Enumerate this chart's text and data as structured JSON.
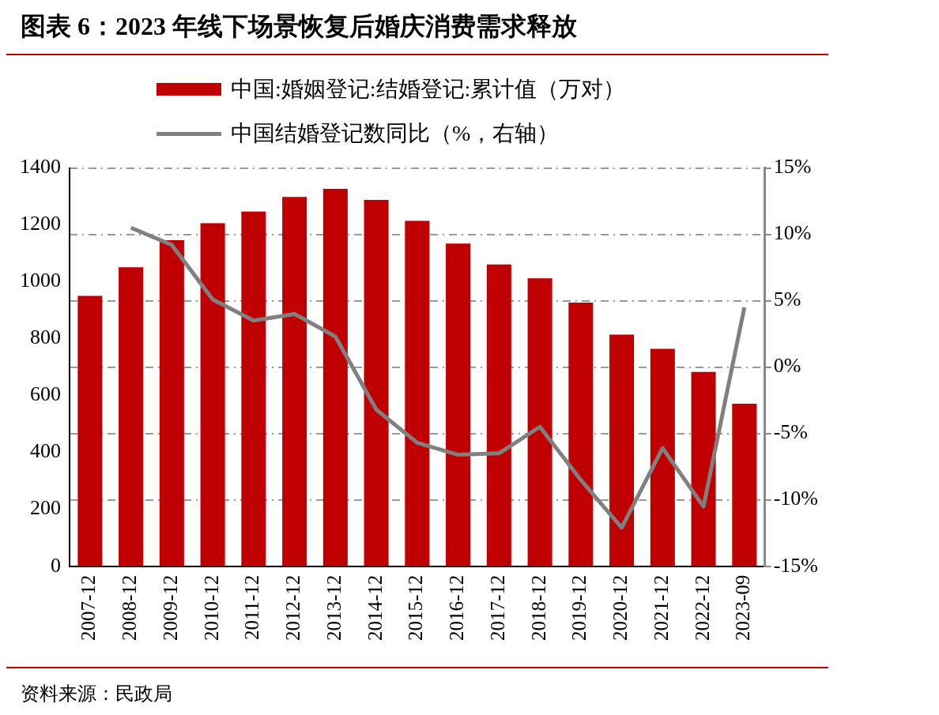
{
  "chart_data": {
    "type": "bar",
    "title": "图表 6：2023 年线下场景恢复后婚庆消费需求释放",
    "categories": [
      "2007-12",
      "2008-12",
      "2009-12",
      "2010-12",
      "2011-12",
      "2012-12",
      "2013-12",
      "2014-12",
      "2015-12",
      "2016-12",
      "2017-12",
      "2018-12",
      "2019-12",
      "2020-12",
      "2021-12",
      "2022-12",
      "2023-09"
    ],
    "series": [
      {
        "name": "中国:婚姻登记:结婚登记:累计值（万对）",
        "color": "#c00000",
        "values": [
          950,
          1051,
          1146,
          1206,
          1247,
          1298,
          1327,
          1288,
          1214,
          1134,
          1061,
          1012,
          927,
          814,
          764,
          683,
          571
        ]
      },
      {
        "name": "中国结婚登记数同比（%，右轴）",
        "type": "line",
        "axis": "y2",
        "color": "#808080",
        "values": [
          null,
          10.5,
          9.2,
          5.1,
          3.5,
          4.0,
          2.3,
          -3.2,
          -5.7,
          -6.6,
          -6.5,
          -4.5,
          -8.5,
          -12.1,
          -6.1,
          -10.5,
          4.5
        ]
      }
    ],
    "ylim": [
      0,
      1400
    ],
    "yticks": [
      0,
      200,
      400,
      600,
      800,
      1000,
      1200,
      1400
    ],
    "y2lim": [
      -15,
      15
    ],
    "y2ticks": [
      {
        "value": -15,
        "label": "-15%"
      },
      {
        "value": -10,
        "label": "-10%"
      },
      {
        "value": -5,
        "label": "-5%"
      },
      {
        "value": 0,
        "label": "0%"
      },
      {
        "value": 5,
        "label": "5%"
      },
      {
        "value": 10,
        "label": "10%"
      },
      {
        "value": 15,
        "label": "15%"
      }
    ],
    "grid": "y",
    "legend": "top",
    "marker": "none",
    "annotations": [
      "资料来源：民政局"
    ]
  }
}
